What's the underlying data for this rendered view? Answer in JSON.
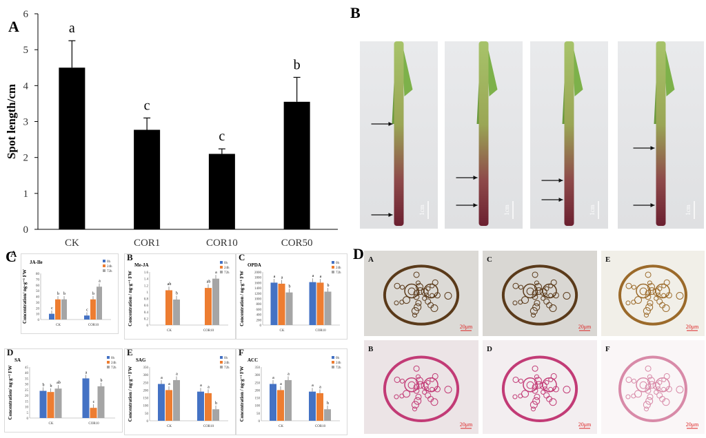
{
  "panels": {
    "a": "A",
    "b": "B",
    "c": "C",
    "d": "D"
  },
  "chart_data": [
    {
      "type": "bar",
      "ylabel": "Spot length/cm",
      "ylim": [
        0,
        6
      ],
      "yticks": [
        "0",
        "1",
        "2",
        "3",
        "4",
        "5",
        "6"
      ],
      "categories": [
        "CK",
        "COR1",
        "COR10",
        "COR50"
      ],
      "values": [
        4.5,
        2.77,
        2.1,
        3.55
      ],
      "errors": [
        0.75,
        0.33,
        0.14,
        0.68
      ],
      "letters": [
        "a",
        "c",
        "c",
        "b"
      ],
      "color": "#000000"
    },
    {
      "type": "bar",
      "title": "JA-Ile",
      "ylabel": "Concentration/ ng·g⁻¹ FW",
      "ylim": [
        0,
        80
      ],
      "yticks": [
        "0",
        "10",
        "20",
        "30",
        "40",
        "50",
        "60",
        "70",
        "80"
      ],
      "categories": [
        "CK",
        "COR10"
      ],
      "series": [
        {
          "name": "0h",
          "values": [
            10,
            7
          ],
          "letters": [
            "c",
            "c"
          ]
        },
        {
          "name": "24h",
          "values": [
            35,
            35
          ],
          "letters": [
            "b",
            "b"
          ]
        },
        {
          "name": "72h",
          "values": [
            35,
            57
          ],
          "letters": [
            "b",
            "a"
          ]
        }
      ]
    },
    {
      "type": "bar",
      "title": "Me-JA",
      "ylabel": "Concentration / ng·g⁻¹ FW",
      "ylim": [
        0,
        1.6
      ],
      "yticks": [
        "0",
        "0.2",
        "0.4",
        "0.6",
        "0.8",
        "1",
        "1.2",
        "1.4",
        "1.6"
      ],
      "categories": [
        "CK",
        "COR10"
      ],
      "series": [
        {
          "name": "0h",
          "values": [
            null,
            null
          ],
          "letters": [
            "",
            ""
          ]
        },
        {
          "name": "24h",
          "values": [
            1.05,
            1.12
          ],
          "letters": [
            "ab",
            "ab"
          ]
        },
        {
          "name": "72h",
          "values": [
            0.77,
            1.4
          ],
          "letters": [
            "b",
            "a"
          ]
        }
      ]
    },
    {
      "type": "bar",
      "title": "OPDA",
      "ylabel": "Concentration / ng·g⁻¹ FW",
      "ylim": [
        0,
        2000
      ],
      "yticks": [
        "0",
        "200",
        "400",
        "600",
        "800",
        "1000",
        "1200",
        "1400",
        "1600",
        "1800",
        "2000"
      ],
      "categories": [
        "CK",
        "COR10"
      ],
      "series": [
        {
          "name": "0h",
          "values": [
            1600,
            1620
          ],
          "letters": [
            "a",
            "a"
          ]
        },
        {
          "name": "24h",
          "values": [
            1560,
            1600
          ],
          "letters": [
            "a",
            "a"
          ]
        },
        {
          "name": "72h",
          "values": [
            1230,
            1260
          ],
          "letters": [
            "b",
            "b"
          ]
        }
      ]
    },
    {
      "type": "bar",
      "title": "SA",
      "ylabel": "Concentration/ ng·g⁻¹ FW",
      "ylim": [
        0,
        45
      ],
      "yticks": [
        "0",
        "5",
        "10",
        "15",
        "20",
        "25",
        "30",
        "35",
        "40",
        "45"
      ],
      "categories": [
        "CK",
        "COR10"
      ],
      "series": [
        {
          "name": "0h",
          "values": [
            24,
            35
          ],
          "letters": [
            "b",
            "a"
          ]
        },
        {
          "name": "24h",
          "values": [
            23,
            9
          ],
          "letters": [
            "b",
            "c"
          ]
        },
        {
          "name": "72h",
          "values": [
            26,
            28
          ],
          "letters": [
            "ab",
            "b"
          ]
        }
      ]
    },
    {
      "type": "bar",
      "title": "SAG",
      "ylabel": "Concentration / ng·g⁻¹ FW",
      "ylim": [
        0,
        350
      ],
      "yticks": [
        "0",
        "50",
        "100",
        "150",
        "200",
        "250",
        "300",
        "350"
      ],
      "categories": [
        "CK",
        "COR10"
      ],
      "series": [
        {
          "name": "0h",
          "values": [
            240,
            190
          ],
          "letters": [
            "a",
            "a"
          ]
        },
        {
          "name": "24h",
          "values": [
            200,
            180
          ],
          "letters": [
            "a",
            "a"
          ]
        },
        {
          "name": "72h",
          "values": [
            265,
            75
          ],
          "letters": [
            "a",
            "b"
          ]
        }
      ]
    },
    {
      "type": "bar",
      "title": "ACC",
      "ylabel": "Concentration / ng·g⁻¹ FW",
      "ylim": [
        0,
        350
      ],
      "yticks": [
        "0",
        "50",
        "100",
        "150",
        "200",
        "250",
        "300",
        "350"
      ],
      "categories": [
        "CK",
        "COR10"
      ],
      "series": [
        {
          "name": "0h",
          "values": [
            240,
            190
          ],
          "letters": [
            "a",
            "a"
          ]
        },
        {
          "name": "24h",
          "values": [
            200,
            180
          ],
          "letters": [
            "a",
            "a"
          ]
        },
        {
          "name": "72h",
          "values": [
            265,
            75
          ],
          "letters": [
            "a",
            "b"
          ]
        }
      ]
    }
  ],
  "mini_letters": [
    "A",
    "B",
    "C",
    "D",
    "E",
    "F"
  ],
  "legend": [
    "0h",
    "24h",
    "72h"
  ],
  "colors": {
    "s0": "#4472C4",
    "s1": "#ED7D31",
    "s2": "#A5A5A5"
  },
  "photos": {
    "scale_cm": "1cm",
    "scale_um": "20μm",
    "section_letters": [
      "A",
      "C",
      "E",
      "B",
      "D",
      "F"
    ]
  }
}
